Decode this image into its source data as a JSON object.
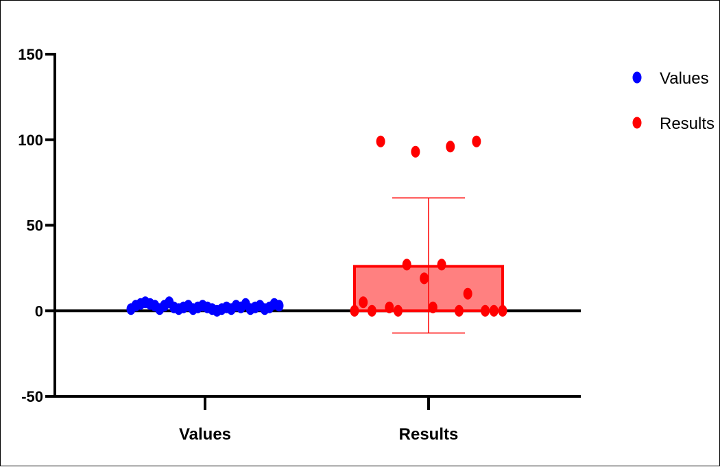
{
  "chart_data": {
    "type": "scatter",
    "title": "",
    "xlabel": "",
    "ylabel": "",
    "ylim": [
      -50,
      150
    ],
    "yticks": [
      -50,
      0,
      50,
      100,
      150
    ],
    "ytick_labels": [
      "-50",
      "0",
      "50",
      "100",
      "150"
    ],
    "categories": [
      "Values",
      "Results"
    ],
    "grid": false,
    "legend": "top-right",
    "series": [
      {
        "name": "Values",
        "color": "#0000ff",
        "bar": null,
        "values": [
          1,
          3,
          4,
          5,
          4,
          3,
          1,
          3,
          5,
          2,
          1,
          2,
          3,
          1,
          2,
          3,
          2,
          1,
          0,
          1,
          2,
          1,
          3,
          2,
          4,
          1,
          2,
          3,
          1,
          2,
          4,
          3
        ]
      },
      {
        "name": "Results",
        "color": "#ff0000",
        "bar": {
          "mean": 26,
          "error_upper": 66,
          "error_lower": -13,
          "fill": "#ff8080"
        },
        "values": [
          0,
          5,
          0,
          99,
          2,
          0,
          27,
          93,
          19,
          2,
          27,
          96,
          0,
          10,
          99,
          0,
          0,
          0
        ]
      }
    ]
  }
}
